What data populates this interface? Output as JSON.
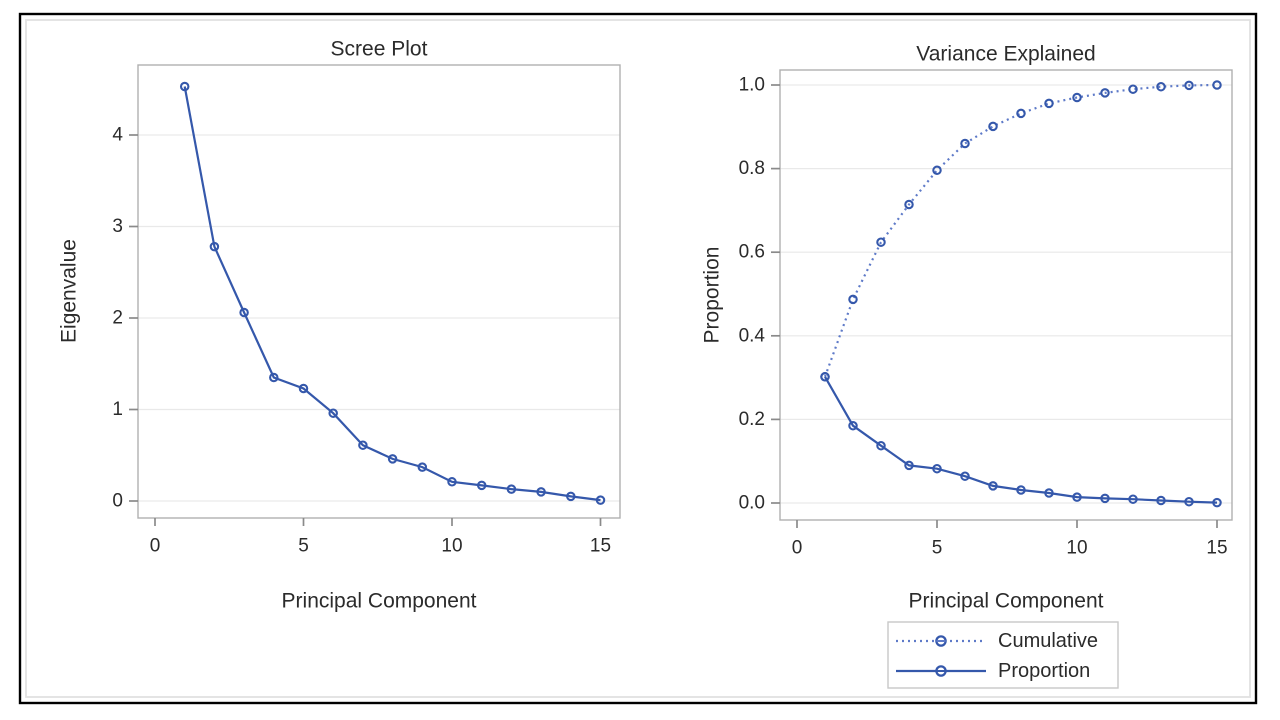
{
  "colors": {
    "series_blue": "#3558ab",
    "series_blue_dotted": "#5e7ac8",
    "marker_blue": "#3558ab",
    "plot_frame": "#b0b0b0",
    "grid_line": "#e9e9e9",
    "tick_mark": "#8a8a8a",
    "text": "#2b2b2b",
    "legend_border": "#c8c8c8",
    "panel_border": "#000000",
    "panel_inner_border": "#e2e2e2",
    "background": "#ffffff"
  },
  "chart_data": [
    {
      "type": "line",
      "title": "Scree Plot",
      "xlabel": "Principal Component",
      "ylabel": "Eigenvalue",
      "x": [
        1,
        2,
        3,
        4,
        5,
        6,
        7,
        8,
        9,
        10,
        11,
        12,
        13,
        14,
        15
      ],
      "series": [
        {
          "name": "Eigenvalue",
          "line": "solid",
          "marker": "open-circle",
          "values": [
            4.53,
            2.78,
            2.06,
            1.35,
            1.23,
            0.96,
            0.61,
            0.46,
            0.37,
            0.21,
            0.17,
            0.13,
            0.1,
            0.05,
            0.01
          ]
        }
      ],
      "xticks": [
        {
          "v": 0,
          "label": "0"
        },
        {
          "v": 5,
          "label": "5"
        },
        {
          "v": 10,
          "label": "10"
        },
        {
          "v": 15,
          "label": "15"
        }
      ],
      "yticks": [
        {
          "v": 0,
          "label": "0"
        },
        {
          "v": 1,
          "label": "1"
        },
        {
          "v": 2,
          "label": "2"
        },
        {
          "v": 3,
          "label": "3"
        },
        {
          "v": 4,
          "label": "4"
        }
      ],
      "xlim": [
        -0.6,
        15.7
      ],
      "ylim": [
        -0.19,
        4.77
      ],
      "grid": "horizontal"
    },
    {
      "type": "line",
      "title": "Variance Explained",
      "xlabel": "Principal Component",
      "ylabel": "Proportion",
      "x": [
        1,
        2,
        3,
        4,
        5,
        6,
        7,
        8,
        9,
        10,
        11,
        12,
        13,
        14,
        15
      ],
      "series": [
        {
          "name": "Cumulative",
          "line": "dotted",
          "marker": "open-circle",
          "values": [
            0.302,
            0.487,
            0.624,
            0.714,
            0.796,
            0.86,
            0.901,
            0.932,
            0.956,
            0.97,
            0.981,
            0.99,
            0.996,
            0.999,
            1.0
          ]
        },
        {
          "name": "Proportion",
          "line": "solid",
          "marker": "open-circle",
          "values": [
            0.302,
            0.185,
            0.137,
            0.09,
            0.082,
            0.064,
            0.041,
            0.031,
            0.024,
            0.014,
            0.011,
            0.009,
            0.006,
            0.003,
            0.001
          ]
        }
      ],
      "xticks": [
        {
          "v": 0,
          "label": "0"
        },
        {
          "v": 5,
          "label": "5"
        },
        {
          "v": 10,
          "label": "10"
        },
        {
          "v": 15,
          "label": "15"
        }
      ],
      "yticks": [
        {
          "v": 0.0,
          "label": "0.0"
        },
        {
          "v": 0.2,
          "label": "0.2"
        },
        {
          "v": 0.4,
          "label": "0.4"
        },
        {
          "v": 0.6,
          "label": "0.6"
        },
        {
          "v": 0.8,
          "label": "0.8"
        },
        {
          "v": 1.0,
          "label": "1.0"
        }
      ],
      "xlim": [
        -0.61,
        15.55
      ],
      "ylim": [
        -0.04,
        1.04
      ],
      "grid": "horizontal",
      "legend": {
        "position": "bottom-right",
        "entries": [
          {
            "label": "Cumulative",
            "line": "dotted"
          },
          {
            "label": "Proportion",
            "line": "solid"
          }
        ]
      }
    }
  ]
}
